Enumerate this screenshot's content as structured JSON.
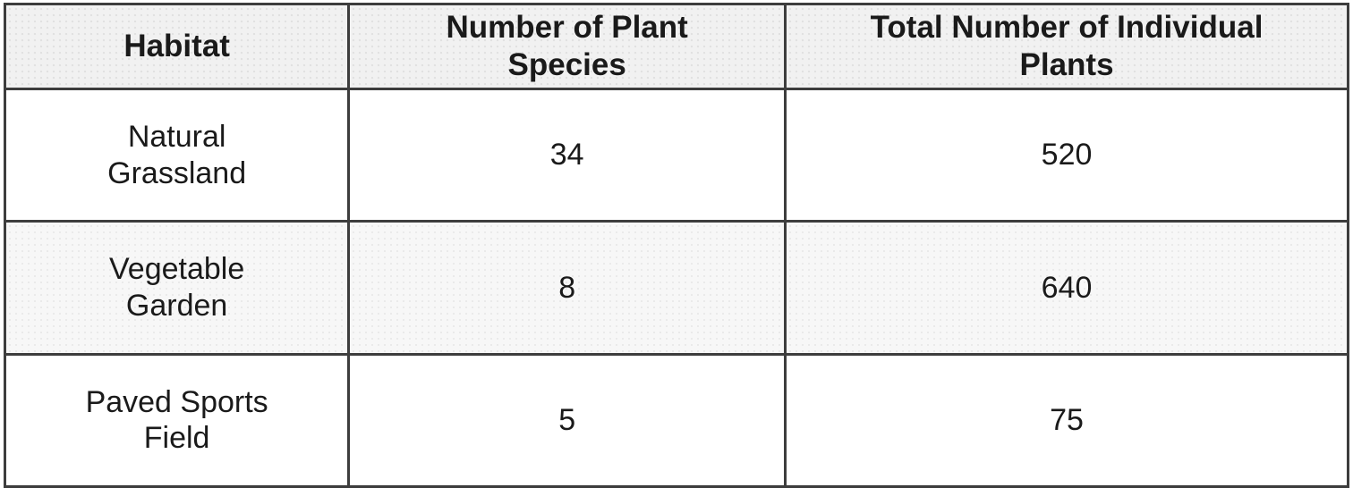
{
  "table": {
    "columns": [
      "Habitat",
      "Number of Plant\nSpecies",
      "Total Number of Individual\nPlants"
    ],
    "rows": [
      {
        "habitat": "Natural\nGrassland",
        "species": "34",
        "plants": "520"
      },
      {
        "habitat": "Vegetable\nGarden",
        "species": "8",
        "plants": "640"
      },
      {
        "habitat": "Paved Sports\nField",
        "species": "5",
        "plants": "75"
      }
    ]
  },
  "chart_data": {
    "type": "table",
    "title": "",
    "columns": [
      "Habitat",
      "Number of Plant Species",
      "Total Number of Individual Plants"
    ],
    "rows": [
      [
        "Natural Grassland",
        34,
        520
      ],
      [
        "Vegetable Garden",
        8,
        640
      ],
      [
        "Paved Sports Field",
        5,
        75
      ]
    ]
  },
  "colors": {
    "border": "#3d3d3d",
    "header_bg": "#f1f1f1",
    "alt_row_bg": "#f7f7f7",
    "row_bg": "#ffffff",
    "text": "#1a1a1a"
  }
}
